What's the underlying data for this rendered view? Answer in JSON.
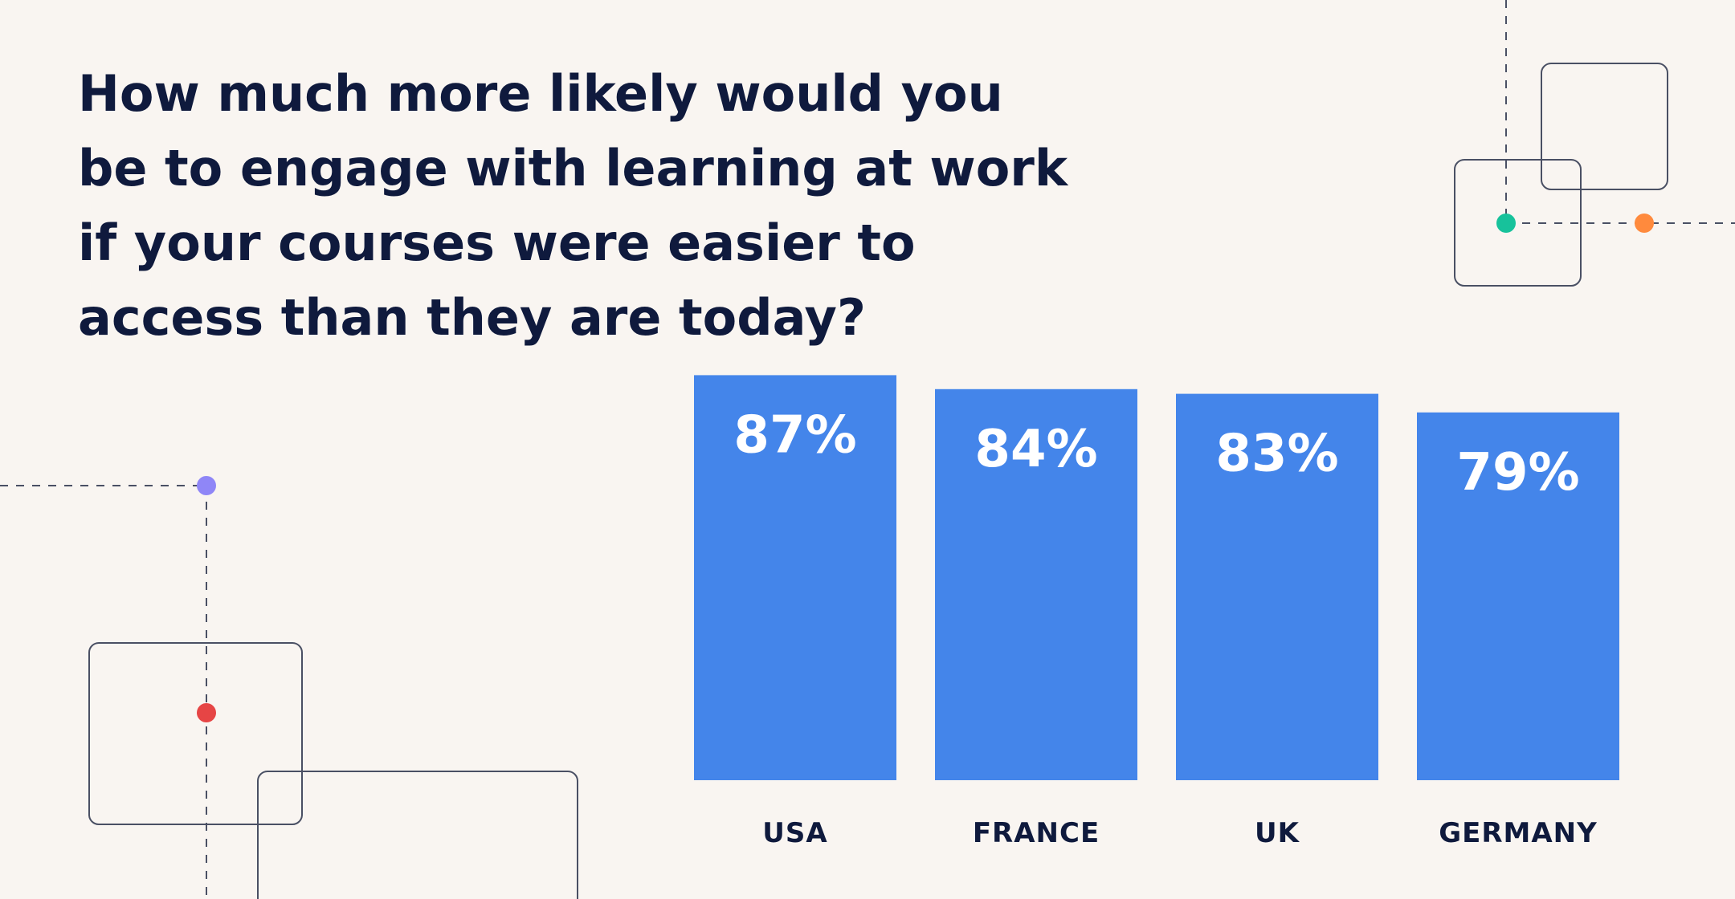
{
  "title": "How much more likely would you be to engage with learning at work if your courses were easier to access than they are today?",
  "colors": {
    "background": "#f9f5f1",
    "bar": "#4485ea",
    "text_dark": "#0f1a3d",
    "value_text": "#ffffff",
    "deco_line": "#4a5064",
    "dot_green": "#17c29b",
    "dot_orange": "#ff8a3d",
    "dot_purple": "#8f86f7",
    "dot_red": "#e64545"
  },
  "chart_data": {
    "type": "bar",
    "title": "How much more likely would you be to engage with learning at work if your courses were easier to access than they are today?",
    "categories": [
      "USA",
      "FRANCE",
      "UK",
      "GERMANY"
    ],
    "values": [
      87,
      84,
      83,
      79
    ],
    "value_labels": [
      "87%",
      "84%",
      "83%",
      "79%"
    ],
    "unit": "%",
    "xlabel": "",
    "ylabel": "",
    "ylim": [
      0,
      100
    ],
    "grid": false,
    "legend": "none"
  }
}
